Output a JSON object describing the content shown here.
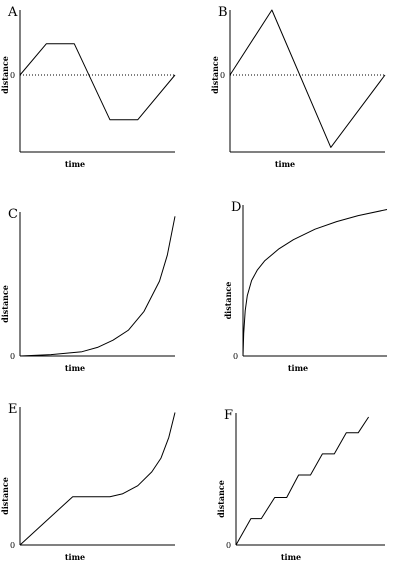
{
  "chart_data": [
    {
      "type": "line",
      "panel_label": "A",
      "xlabel": "time",
      "ylabel": "distance",
      "origin_label": "0",
      "zero_line": true,
      "xlim": [
        0,
        10
      ],
      "ylim": [
        -5,
        5
      ],
      "series": [
        {
          "x": [
            0,
            1.7,
            3.5,
            5.8,
            7.6,
            10
          ],
          "values": [
            0,
            2.4,
            2.4,
            -2.9,
            -2.9,
            0
          ]
        }
      ]
    },
    {
      "type": "line",
      "panel_label": "B",
      "xlabel": "time",
      "ylabel": "distance",
      "origin_label": "0",
      "zero_line": true,
      "xlim": [
        0,
        10
      ],
      "ylim": [
        -5,
        5
      ],
      "series": [
        {
          "x": [
            0,
            2.7,
            6.5,
            10
          ],
          "values": [
            0,
            5,
            -4.7,
            0
          ]
        }
      ]
    },
    {
      "type": "line",
      "panel_label": "C",
      "xlabel": "time",
      "ylabel": "distance",
      "origin_label": "0",
      "zero_line": false,
      "xlim": [
        0,
        10
      ],
      "ylim": [
        0,
        10
      ],
      "series": [
        {
          "x": [
            0,
            2,
            4,
            5,
            6,
            7,
            8,
            9,
            9.5,
            10
          ],
          "values": [
            0,
            0.1,
            0.3,
            0.6,
            1.1,
            1.8,
            3.1,
            5.2,
            7.0,
            9.7
          ]
        }
      ]
    },
    {
      "type": "line",
      "panel_label": "D",
      "xlabel": "time",
      "ylabel": "distance",
      "origin_label": "0",
      "zero_line": false,
      "xlim": [
        0,
        10
      ],
      "ylim": [
        0,
        10
      ],
      "series": [
        {
          "x": [
            0,
            0.05,
            0.15,
            0.3,
            0.6,
            1,
            1.5,
            2.5,
            3.5,
            5,
            6.5,
            8,
            10
          ],
          "values": [
            0,
            1.5,
            3,
            4,
            5,
            5.7,
            6.3,
            7.1,
            7.7,
            8.4,
            8.9,
            9.3,
            9.7
          ]
        }
      ]
    },
    {
      "type": "line",
      "panel_label": "E",
      "xlabel": "time",
      "ylabel": "distance",
      "origin_label": "0",
      "zero_line": false,
      "xlim": [
        0,
        10
      ],
      "ylim": [
        0,
        10
      ],
      "series": [
        {
          "x": [
            0,
            3.4,
            5.8,
            6.6,
            7.6,
            8.5,
            9.1,
            9.6,
            10
          ],
          "values": [
            0,
            3.5,
            3.5,
            3.7,
            4.3,
            5.3,
            6.3,
            7.8,
            9.6
          ]
        }
      ]
    },
    {
      "type": "line",
      "panel_label": "F",
      "xlabel": "time",
      "ylabel": "distance",
      "origin_label": "0",
      "zero_line": false,
      "xlim": [
        0,
        10
      ],
      "ylim": [
        0,
        10
      ],
      "series": [
        {
          "x": [
            0,
            1,
            1.7,
            2.6,
            3.4,
            4.2,
            5.0,
            5.8,
            6.6,
            7.4,
            8.2,
            8.9
          ],
          "values": [
            0,
            2,
            2,
            3.6,
            3.6,
            5.3,
            5.3,
            6.9,
            6.9,
            8.5,
            8.5,
            9.7
          ]
        }
      ]
    }
  ]
}
